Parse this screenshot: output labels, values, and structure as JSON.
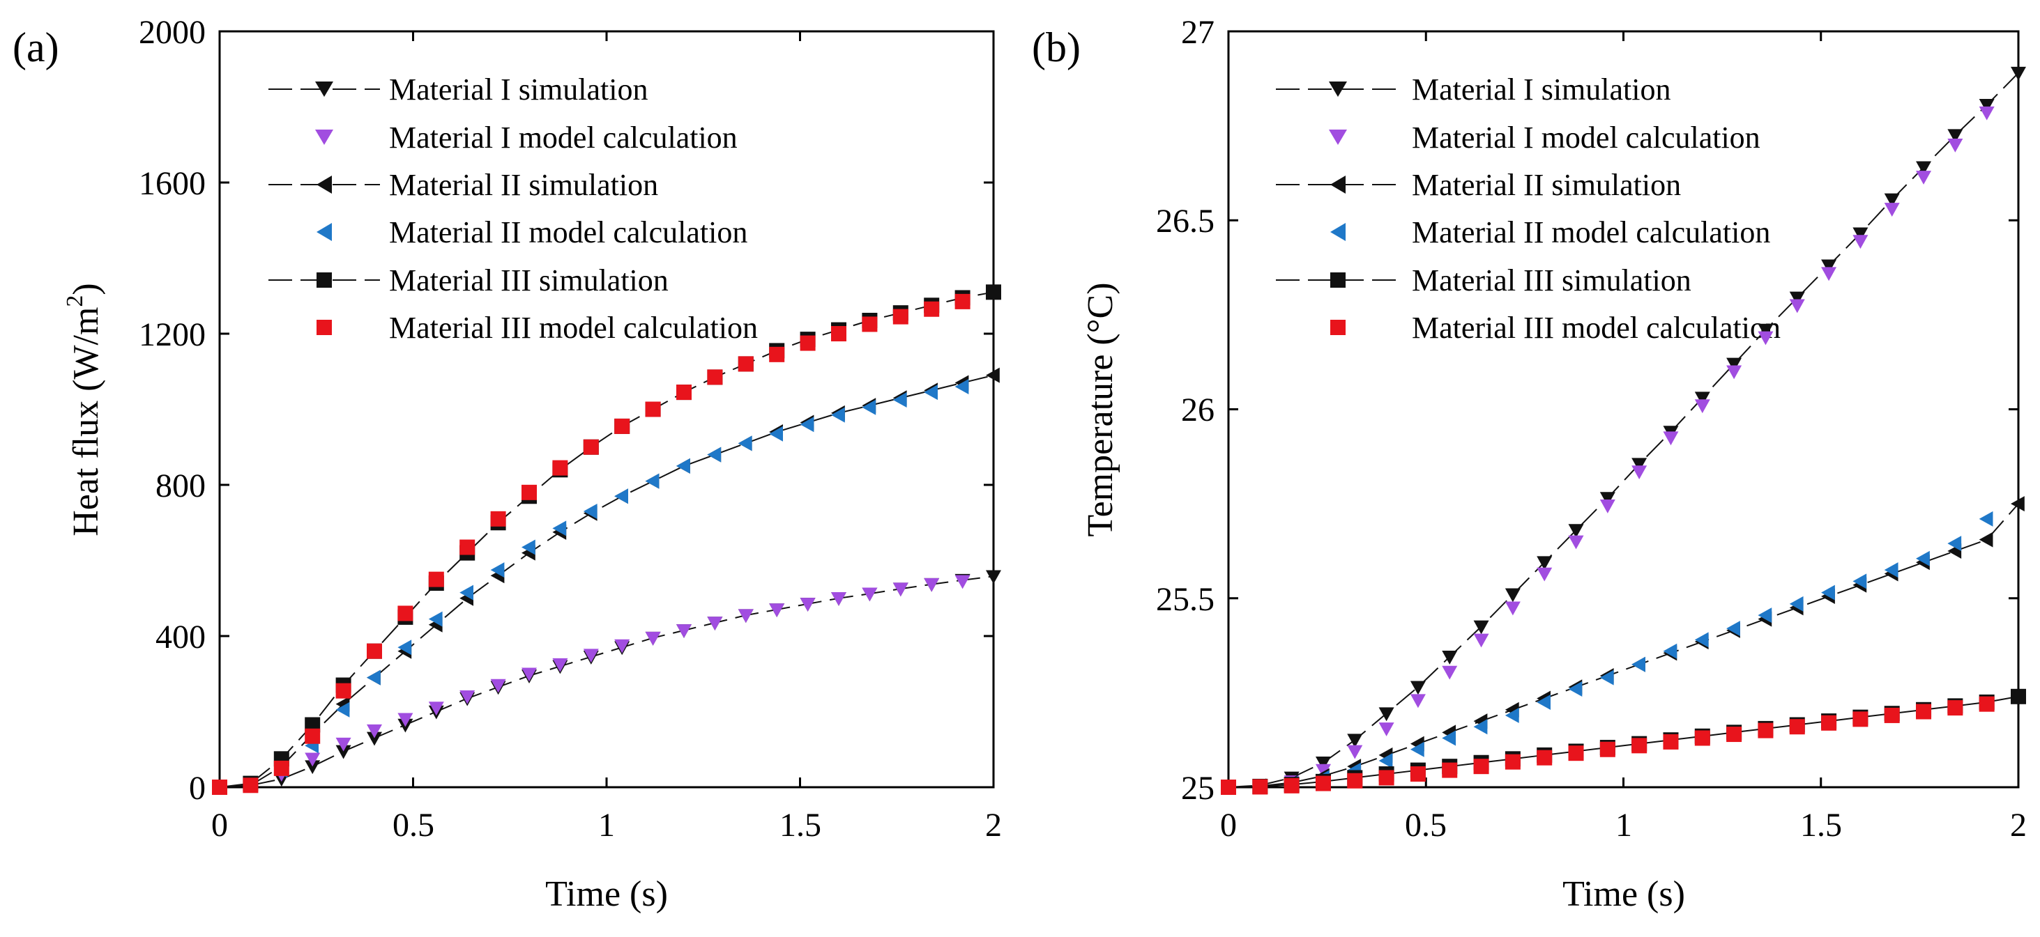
{
  "chart_data": [
    {
      "type": "line",
      "panel_label": "(a)",
      "xlabel": "Time (s)",
      "ylabel": "Heat flux (W/m",
      "ylabel_sup": "2",
      "ylabel_tail": ")",
      "xlim": [
        0,
        2
      ],
      "ylim": [
        0,
        2000
      ],
      "xticks": [
        0,
        0.5,
        1,
        1.5,
        2
      ],
      "xtick_labels": [
        "0",
        "0.5",
        "1",
        "1.5",
        "2"
      ],
      "yticks": [
        0,
        400,
        800,
        1200,
        1600,
        2000
      ],
      "ytick_labels": [
        "0",
        "400",
        "800",
        "1200",
        "1600",
        "2000"
      ],
      "grid": false,
      "legend_position": "top-left",
      "series": [
        {
          "name": "Material I simulation",
          "marker": "triangle-down",
          "color": "#111111",
          "line": true,
          "x": [
            0,
            0.08,
            0.16,
            0.24,
            0.32,
            0.4,
            0.48,
            0.56,
            0.64,
            0.72,
            0.8,
            0.88,
            0.96,
            1.04,
            1.12,
            1.2,
            1.28,
            1.36,
            1.44,
            1.52,
            1.6,
            1.68,
            1.76,
            1.84,
            1.92,
            2.0
          ],
          "values": [
            0,
            5,
            22,
            55,
            95,
            130,
            165,
            200,
            235,
            265,
            295,
            320,
            345,
            370,
            395,
            415,
            435,
            455,
            470,
            485,
            500,
            512,
            525,
            537,
            548,
            558
          ]
        },
        {
          "name": "Material I model calculation",
          "marker": "triangle-down",
          "color": "#a14de0",
          "line": false,
          "x": [
            0,
            0.08,
            0.16,
            0.24,
            0.32,
            0.4,
            0.48,
            0.56,
            0.64,
            0.72,
            0.8,
            0.88,
            0.96,
            1.04,
            1.12,
            1.2,
            1.28,
            1.36,
            1.44,
            1.52,
            1.6,
            1.68,
            1.76,
            1.84,
            1.92
          ],
          "values": [
            0,
            10,
            35,
            75,
            115,
            150,
            180,
            210,
            240,
            270,
            300,
            325,
            350,
            375,
            395,
            415,
            435,
            455,
            470,
            485,
            500,
            512,
            525,
            537,
            545
          ]
        },
        {
          "name": "Material II simulation",
          "marker": "triangle-left",
          "color": "#111111",
          "line": true,
          "x": [
            0,
            0.08,
            0.16,
            0.24,
            0.32,
            0.4,
            0.48,
            0.56,
            0.64,
            0.72,
            0.8,
            0.88,
            0.96,
            1.04,
            1.12,
            1.2,
            1.28,
            1.36,
            1.44,
            1.52,
            1.6,
            1.68,
            1.76,
            1.84,
            1.92,
            2.0
          ],
          "values": [
            0,
            5,
            55,
            140,
            220,
            290,
            360,
            430,
            500,
            560,
            620,
            675,
            725,
            770,
            810,
            850,
            880,
            910,
            940,
            965,
            990,
            1010,
            1030,
            1050,
            1070,
            1090
          ]
        },
        {
          "name": "Material II model calculation",
          "marker": "triangle-left",
          "color": "#1f78c8",
          "line": false,
          "x": [
            0,
            0.08,
            0.16,
            0.24,
            0.32,
            0.4,
            0.48,
            0.56,
            0.64,
            0.72,
            0.8,
            0.88,
            0.96,
            1.04,
            1.12,
            1.2,
            1.28,
            1.36,
            1.44,
            1.52,
            1.6,
            1.68,
            1.76,
            1.84,
            1.92
          ],
          "values": [
            0,
            8,
            45,
            110,
            205,
            290,
            370,
            445,
            515,
            575,
            635,
            685,
            730,
            770,
            810,
            850,
            880,
            910,
            935,
            960,
            985,
            1005,
            1025,
            1045,
            1060
          ]
        },
        {
          "name": "Material III simulation",
          "marker": "square",
          "color": "#111111",
          "line": true,
          "x": [
            0,
            0.08,
            0.16,
            0.24,
            0.32,
            0.4,
            0.48,
            0.56,
            0.64,
            0.72,
            0.8,
            0.88,
            0.96,
            1.04,
            1.12,
            1.2,
            1.28,
            1.36,
            1.44,
            1.52,
            1.6,
            1.68,
            1.76,
            1.84,
            1.92,
            2.0
          ],
          "values": [
            0,
            10,
            75,
            165,
            270,
            360,
            450,
            540,
            620,
            700,
            770,
            840,
            900,
            955,
            1000,
            1045,
            1085,
            1120,
            1155,
            1185,
            1210,
            1235,
            1255,
            1275,
            1295,
            1310
          ]
        },
        {
          "name": "Material III model calculation",
          "marker": "square",
          "color": "#e8141c",
          "line": false,
          "x": [
            0,
            0.08,
            0.16,
            0.24,
            0.32,
            0.4,
            0.48,
            0.56,
            0.64,
            0.72,
            0.8,
            0.88,
            0.96,
            1.04,
            1.12,
            1.2,
            1.28,
            1.36,
            1.44,
            1.52,
            1.6,
            1.68,
            1.76,
            1.84,
            1.92
          ],
          "values": [
            0,
            5,
            50,
            135,
            255,
            360,
            460,
            550,
            635,
            710,
            780,
            845,
            900,
            955,
            1000,
            1045,
            1085,
            1120,
            1145,
            1175,
            1200,
            1225,
            1245,
            1265,
            1285
          ]
        }
      ]
    },
    {
      "type": "line",
      "panel_label": "(b)",
      "xlabel": "Time (s)",
      "ylabel": "Temperature (°C)",
      "xlim": [
        0,
        2
      ],
      "ylim": [
        25,
        27
      ],
      "xticks": [
        0,
        0.5,
        1,
        1.5,
        2
      ],
      "xtick_labels": [
        "0",
        "0.5",
        "1",
        "1.5",
        "2"
      ],
      "yticks": [
        25,
        25.5,
        26,
        26.5,
        27
      ],
      "ytick_labels": [
        "25",
        "25.5",
        "26",
        "26.5",
        "27"
      ],
      "grid": false,
      "legend_position": "top-left",
      "series": [
        {
          "name": "Material I simulation",
          "marker": "triangle-down",
          "color": "#111111",
          "line": true,
          "x": [
            0,
            0.08,
            0.16,
            0.24,
            0.32,
            0.4,
            0.48,
            0.56,
            0.64,
            0.72,
            0.8,
            0.88,
            0.96,
            1.04,
            1.12,
            1.2,
            1.28,
            1.36,
            1.44,
            1.52,
            1.6,
            1.68,
            1.76,
            1.84,
            1.92,
            2.0
          ],
          "values": [
            25.0,
            25.005,
            25.025,
            25.065,
            25.125,
            25.195,
            25.265,
            25.345,
            25.425,
            25.51,
            25.595,
            25.68,
            25.765,
            25.855,
            25.94,
            26.03,
            26.12,
            26.21,
            26.295,
            26.38,
            26.465,
            26.555,
            26.64,
            26.725,
            26.805,
            26.89
          ]
        },
        {
          "name": "Material I model calculation",
          "marker": "triangle-down",
          "color": "#a14de0",
          "line": false,
          "x": [
            0,
            0.08,
            0.16,
            0.24,
            0.32,
            0.4,
            0.48,
            0.56,
            0.64,
            0.72,
            0.8,
            0.88,
            0.96,
            1.04,
            1.12,
            1.2,
            1.28,
            1.36,
            1.44,
            1.52,
            1.6,
            1.68,
            1.76,
            1.84,
            1.92
          ],
          "values": [
            25.0,
            25.003,
            25.015,
            25.045,
            25.095,
            25.155,
            25.23,
            25.305,
            25.39,
            25.475,
            25.565,
            25.65,
            25.745,
            25.835,
            25.925,
            26.01,
            26.1,
            26.19,
            26.275,
            26.36,
            26.445,
            26.53,
            26.615,
            26.7,
            26.785
          ]
        },
        {
          "name": "Material II simulation",
          "marker": "triangle-left",
          "color": "#111111",
          "line": true,
          "x": [
            0,
            0.08,
            0.16,
            0.24,
            0.32,
            0.4,
            0.48,
            0.56,
            0.64,
            0.72,
            0.8,
            0.88,
            0.96,
            1.04,
            1.12,
            1.2,
            1.28,
            1.36,
            1.44,
            1.52,
            1.6,
            1.68,
            1.76,
            1.84,
            1.92,
            2.0
          ],
          "values": [
            25.0,
            25.003,
            25.012,
            25.03,
            25.055,
            25.085,
            25.115,
            25.145,
            25.175,
            25.205,
            25.235,
            25.265,
            25.295,
            25.325,
            25.355,
            25.385,
            25.415,
            25.445,
            25.475,
            25.505,
            25.535,
            25.565,
            25.595,
            25.625,
            25.655,
            25.75
          ]
        },
        {
          "name": "Material II model calculation",
          "marker": "triangle-left",
          "color": "#1f78c8",
          "line": false,
          "x": [
            0,
            0.08,
            0.16,
            0.24,
            0.32,
            0.4,
            0.48,
            0.56,
            0.64,
            0.72,
            0.8,
            0.88,
            0.96,
            1.04,
            1.12,
            1.2,
            1.28,
            1.36,
            1.44,
            1.52,
            1.6,
            1.68,
            1.76,
            1.84,
            1.92
          ],
          "values": [
            25.0,
            25.002,
            25.01,
            25.025,
            25.045,
            25.07,
            25.1,
            25.13,
            25.16,
            25.19,
            25.225,
            25.26,
            25.29,
            25.325,
            25.36,
            25.39,
            25.42,
            25.455,
            25.485,
            25.515,
            25.545,
            25.575,
            25.605,
            25.645,
            25.71
          ]
        },
        {
          "name": "Material III simulation",
          "marker": "square",
          "color": "#111111",
          "line": true,
          "x": [
            0,
            0.08,
            0.16,
            0.24,
            0.32,
            0.4,
            0.48,
            0.56,
            0.64,
            0.72,
            0.8,
            0.88,
            0.96,
            1.04,
            1.12,
            1.2,
            1.28,
            1.36,
            1.44,
            1.52,
            1.6,
            1.68,
            1.76,
            1.84,
            1.92,
            2.0
          ],
          "values": [
            25.0,
            25.002,
            25.007,
            25.015,
            25.025,
            25.035,
            25.045,
            25.055,
            25.065,
            25.075,
            25.085,
            25.095,
            25.105,
            25.115,
            25.125,
            25.135,
            25.145,
            25.155,
            25.165,
            25.175,
            25.185,
            25.195,
            25.205,
            25.215,
            25.225,
            25.24
          ]
        },
        {
          "name": "Material III model calculation",
          "marker": "square",
          "color": "#e8141c",
          "line": false,
          "x": [
            0,
            0.08,
            0.16,
            0.24,
            0.32,
            0.4,
            0.48,
            0.56,
            0.64,
            0.72,
            0.8,
            0.88,
            0.96,
            1.04,
            1.12,
            1.2,
            1.28,
            1.36,
            1.44,
            1.52,
            1.6,
            1.68,
            1.76,
            1.84,
            1.92
          ],
          "values": [
            25.0,
            25.001,
            25.004,
            25.01,
            25.017,
            25.025,
            25.035,
            25.045,
            25.055,
            25.067,
            25.078,
            25.09,
            25.1,
            25.11,
            25.12,
            25.13,
            25.14,
            25.15,
            25.16,
            25.17,
            25.18,
            25.19,
            25.2,
            25.21,
            25.22
          ]
        }
      ]
    }
  ]
}
